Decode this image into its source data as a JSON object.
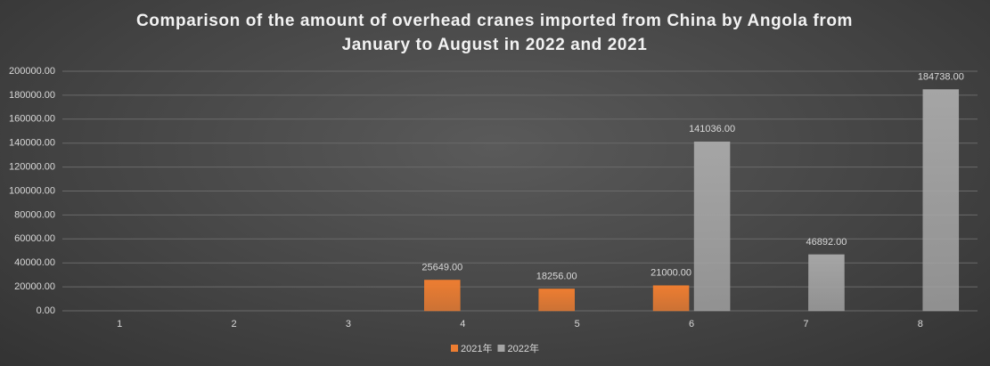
{
  "chart_data": {
    "type": "bar",
    "title": "Comparison of the amount of overhead cranes imported from China by Angola from January to August in 2022 and 2021",
    "categories": [
      "1",
      "2",
      "3",
      "4",
      "5",
      "6",
      "7",
      "8"
    ],
    "series": [
      {
        "name": "2021年",
        "color": "#ed7d31",
        "values": [
          null,
          null,
          null,
          25649,
          18256,
          21000,
          null,
          null
        ],
        "value_labels": [
          null,
          null,
          null,
          "25649.00",
          "18256.00",
          "21000.00",
          null,
          null
        ]
      },
      {
        "name": "2022年",
        "color": "#a5a5a5",
        "values": [
          null,
          null,
          null,
          null,
          null,
          141036,
          46892,
          184738
        ],
        "value_labels": [
          null,
          null,
          null,
          null,
          null,
          "141036.00",
          "46892.00",
          "184738.00"
        ]
      }
    ],
    "ylim": [
      0,
      200000
    ],
    "yticks": [
      {
        "value": 0,
        "label": "0.00"
      },
      {
        "value": 20000,
        "label": "20000.00"
      },
      {
        "value": 40000,
        "label": "40000.00"
      },
      {
        "value": 60000,
        "label": "60000.00"
      },
      {
        "value": 80000,
        "label": "80000.00"
      },
      {
        "value": 100000,
        "label": "100000.00"
      },
      {
        "value": 120000,
        "label": "120000.00"
      },
      {
        "value": 140000,
        "label": "140000.00"
      },
      {
        "value": 160000,
        "label": "160000.00"
      },
      {
        "value": 180000,
        "label": "180000.00"
      },
      {
        "value": 200000,
        "label": "200000.00"
      }
    ],
    "grid": true,
    "legend": "bottom"
  }
}
